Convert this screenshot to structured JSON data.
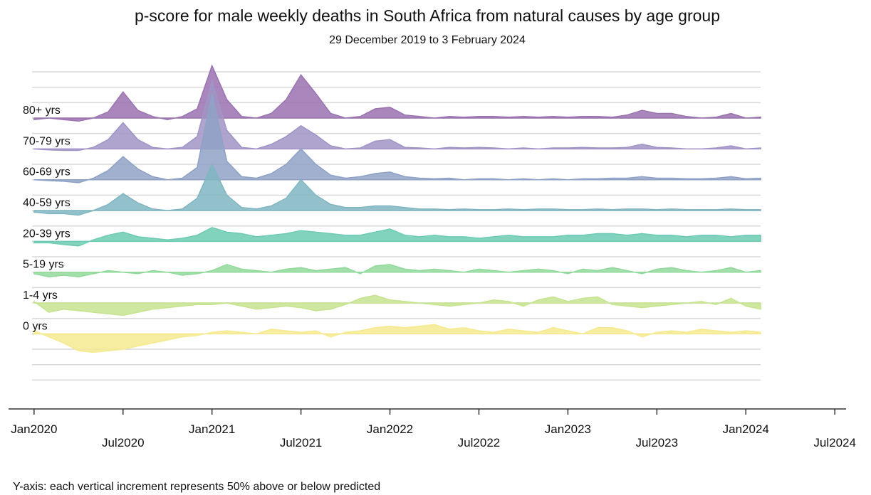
{
  "chart_data": {
    "type": "ridgeline",
    "title": "p-score for male weekly deaths in South Africa from natural causes by age group",
    "subtitle": "29 December 2019 to 3 February 2024",
    "note": "Y-axis: each vertical increment represents 50% above or below predicted",
    "x": [
      "2020-01",
      "2020-02",
      "2020-03",
      "2020-04",
      "2020-05",
      "2020-06",
      "2020-07",
      "2020-08",
      "2020-09",
      "2020-10",
      "2020-11",
      "2020-12",
      "2021-01",
      "2021-02",
      "2021-03",
      "2021-04",
      "2021-05",
      "2021-06",
      "2021-07",
      "2021-08",
      "2021-09",
      "2021-10",
      "2021-11",
      "2021-12",
      "2022-01",
      "2022-02",
      "2022-03",
      "2022-04",
      "2022-05",
      "2022-06",
      "2022-07",
      "2022-08",
      "2022-09",
      "2022-10",
      "2022-11",
      "2022-12",
      "2023-01",
      "2023-02",
      "2023-03",
      "2023-04",
      "2023-05",
      "2023-06",
      "2023-07",
      "2023-08",
      "2023-09",
      "2023-10",
      "2023-11",
      "2023-12",
      "2024-01",
      "2024-02"
    ],
    "xlim": [
      "2019-12",
      "2024-08"
    ],
    "xticks": [
      {
        "value": "2020-01",
        "label": "Jan2020"
      },
      {
        "value": "2020-07",
        "label": "Jul2020"
      },
      {
        "value": "2021-01",
        "label": "Jan2021"
      },
      {
        "value": "2021-07",
        "label": "Jul2021"
      },
      {
        "value": "2022-01",
        "label": "Jan2022"
      },
      {
        "value": "2022-07",
        "label": "Jul2022"
      },
      {
        "value": "2023-01",
        "label": "Jan2023"
      },
      {
        "value": "2023-07",
        "label": "Jul2023"
      },
      {
        "value": "2024-01",
        "label": "Jan2024"
      },
      {
        "value": "2024-07",
        "label": "Jul2024"
      }
    ],
    "grid": true,
    "series": [
      {
        "name": "80+ yrs",
        "color": "#9a72b0",
        "values": [
          -5,
          0,
          -5,
          -10,
          0,
          20,
          85,
          25,
          5,
          -5,
          5,
          30,
          170,
          60,
          5,
          0,
          15,
          60,
          140,
          80,
          15,
          0,
          5,
          30,
          35,
          10,
          5,
          0,
          5,
          3,
          5,
          5,
          3,
          5,
          3,
          5,
          3,
          5,
          5,
          3,
          10,
          25,
          15,
          15,
          5,
          0,
          3,
          15,
          0,
          3
        ]
      },
      {
        "name": "70-79 yrs",
        "color": "#a194c6",
        "values": [
          0,
          -3,
          -5,
          -5,
          5,
          30,
          85,
          30,
          5,
          0,
          5,
          40,
          220,
          60,
          5,
          0,
          15,
          40,
          75,
          45,
          10,
          0,
          3,
          25,
          30,
          5,
          3,
          0,
          5,
          3,
          5,
          3,
          0,
          3,
          0,
          3,
          3,
          5,
          3,
          3,
          5,
          15,
          5,
          3,
          0,
          0,
          3,
          10,
          0,
          3
        ]
      },
      {
        "name": "60-69 yrs",
        "color": "#8fa2c6",
        "values": [
          0,
          -3,
          -5,
          -10,
          5,
          30,
          75,
          35,
          10,
          0,
          5,
          40,
          280,
          60,
          10,
          5,
          20,
          50,
          100,
          50,
          15,
          5,
          10,
          20,
          25,
          10,
          5,
          3,
          5,
          0,
          3,
          3,
          0,
          3,
          0,
          3,
          0,
          3,
          3,
          5,
          5,
          10,
          5,
          5,
          3,
          3,
          5,
          10,
          3,
          5
        ]
      },
      {
        "name": "40-59 yrs",
        "color": "#80b6c2",
        "values": [
          -5,
          -10,
          -10,
          -15,
          0,
          20,
          55,
          25,
          5,
          0,
          5,
          40,
          150,
          50,
          10,
          5,
          15,
          40,
          100,
          50,
          20,
          10,
          10,
          15,
          15,
          10,
          5,
          5,
          3,
          5,
          3,
          3,
          5,
          3,
          5,
          5,
          3,
          3,
          5,
          3,
          5,
          5,
          3,
          5,
          3,
          3,
          3,
          5,
          3,
          3
        ]
      },
      {
        "name": "20-39 yrs",
        "color": "#6ccbb2",
        "values": [
          -5,
          -5,
          -10,
          -15,
          5,
          20,
          30,
          15,
          10,
          5,
          10,
          20,
          45,
          30,
          25,
          15,
          20,
          25,
          35,
          30,
          25,
          20,
          20,
          30,
          40,
          20,
          15,
          20,
          15,
          15,
          10,
          15,
          20,
          15,
          15,
          15,
          20,
          20,
          25,
          25,
          20,
          25,
          20,
          20,
          15,
          20,
          20,
          15,
          20,
          20
        ]
      },
      {
        "name": "5-19 yrs",
        "color": "#92d99c",
        "values": [
          -5,
          -15,
          -10,
          -15,
          -5,
          5,
          0,
          -5,
          5,
          0,
          -10,
          -5,
          5,
          25,
          10,
          5,
          0,
          10,
          15,
          5,
          10,
          15,
          -5,
          20,
          25,
          10,
          5,
          10,
          5,
          0,
          10,
          5,
          0,
          5,
          10,
          5,
          -5,
          10,
          5,
          15,
          5,
          -5,
          10,
          15,
          5,
          0,
          5,
          15,
          0,
          5
        ]
      },
      {
        "name": "1-4 yrs",
        "color": "#c6e490",
        "values": [
          5,
          -30,
          -20,
          -25,
          -30,
          -35,
          -40,
          -30,
          -20,
          -15,
          -10,
          -5,
          -5,
          0,
          -10,
          -20,
          -15,
          -10,
          -15,
          -25,
          -20,
          -5,
          15,
          25,
          10,
          5,
          0,
          -5,
          -10,
          -5,
          0,
          10,
          5,
          -10,
          10,
          20,
          5,
          15,
          20,
          -5,
          -10,
          -15,
          -10,
          -5,
          0,
          5,
          -5,
          15,
          -10,
          -20
        ]
      },
      {
        "name": "0 yrs",
        "color": "#f5ea90",
        "values": [
          10,
          -10,
          -30,
          -55,
          -60,
          -55,
          -50,
          -40,
          -30,
          -20,
          -10,
          -5,
          5,
          10,
          5,
          0,
          15,
          10,
          5,
          10,
          -10,
          5,
          10,
          20,
          25,
          20,
          25,
          30,
          15,
          20,
          10,
          5,
          15,
          10,
          5,
          20,
          10,
          0,
          20,
          20,
          10,
          -10,
          5,
          10,
          5,
          15,
          10,
          5,
          10,
          5
        ]
      }
    ]
  }
}
